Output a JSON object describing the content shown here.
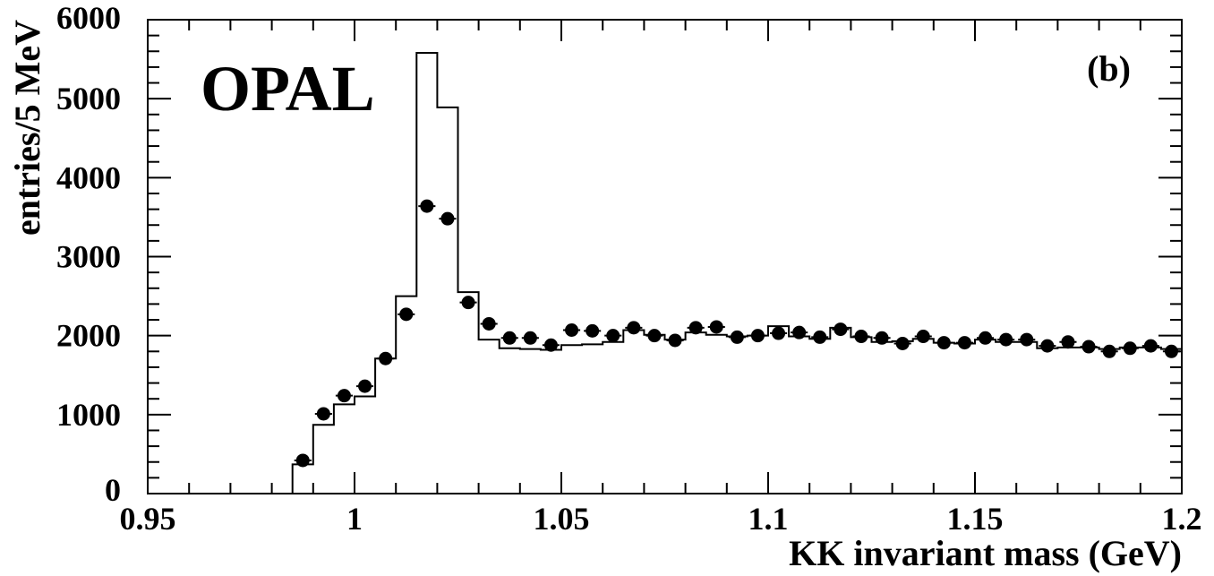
{
  "chart_data": {
    "type": "histogram",
    "title": "",
    "xlabel": "KK invariant mass (GeV)",
    "ylabel": "entries/5 MeV",
    "xlim": [
      0.95,
      1.2
    ],
    "ylim": [
      0,
      6000
    ],
    "grid": false,
    "annotations": [
      "OPAL",
      "(b)"
    ],
    "x_tick_labels": [
      "0.95",
      "1",
      "1.05",
      "1.1",
      "1.15",
      "1.2"
    ],
    "y_tick_labels": [
      "0",
      "1000",
      "2000",
      "3000",
      "4000",
      "5000",
      "6000"
    ],
    "bin_width": 0.005,
    "series": [
      {
        "name": "",
        "style": "step-histogram",
        "x": [
          0.985,
          0.99,
          0.995,
          1.0,
          1.005,
          1.01,
          1.015,
          1.02,
          1.025,
          1.03,
          1.035,
          1.04,
          1.045,
          1.05,
          1.055,
          1.06,
          1.065,
          1.07,
          1.075,
          1.08,
          1.085,
          1.09,
          1.095,
          1.1,
          1.105,
          1.11,
          1.115,
          1.12,
          1.125,
          1.13,
          1.135,
          1.14,
          1.145,
          1.15,
          1.155,
          1.16,
          1.165,
          1.17,
          1.175,
          1.18,
          1.185,
          1.19,
          1.195
        ],
        "values": [
          370,
          870,
          1130,
          1230,
          1710,
          2500,
          5580,
          4890,
          2550,
          1950,
          1840,
          1830,
          1820,
          1880,
          1890,
          1920,
          2070,
          2010,
          1950,
          2040,
          2010,
          1990,
          2000,
          2120,
          1990,
          1960,
          2100,
          1980,
          1920,
          1930,
          1960,
          1910,
          1900,
          1950,
          1920,
          1920,
          1840,
          1850,
          1850,
          1830,
          1850,
          1850,
          1830
        ]
      },
      {
        "name": "",
        "style": "points",
        "x": [
          0.9875,
          0.9925,
          0.9975,
          1.0025,
          1.0075,
          1.0125,
          1.0175,
          1.0225,
          1.0275,
          1.0325,
          1.0375,
          1.0425,
          1.0475,
          1.0525,
          1.0575,
          1.0625,
          1.0675,
          1.0725,
          1.0775,
          1.0825,
          1.0875,
          1.0925,
          1.0975,
          1.1025,
          1.1075,
          1.1125,
          1.1175,
          1.1225,
          1.1275,
          1.1325,
          1.1375,
          1.1425,
          1.1475,
          1.1525,
          1.1575,
          1.1625,
          1.1675,
          1.1725,
          1.1775,
          1.1825,
          1.1875,
          1.1925,
          1.1975
        ],
        "values": [
          420,
          1010,
          1240,
          1360,
          1710,
          2270,
          3640,
          3480,
          2420,
          2150,
          1970,
          1970,
          1880,
          2070,
          2060,
          2000,
          2100,
          2000,
          1940,
          2100,
          2110,
          1980,
          2000,
          2030,
          2040,
          1980,
          2080,
          1990,
          1970,
          1900,
          1990,
          1910,
          1910,
          1970,
          1950,
          1950,
          1870,
          1920,
          1860,
          1800,
          1840,
          1870,
          1800
        ]
      }
    ]
  }
}
